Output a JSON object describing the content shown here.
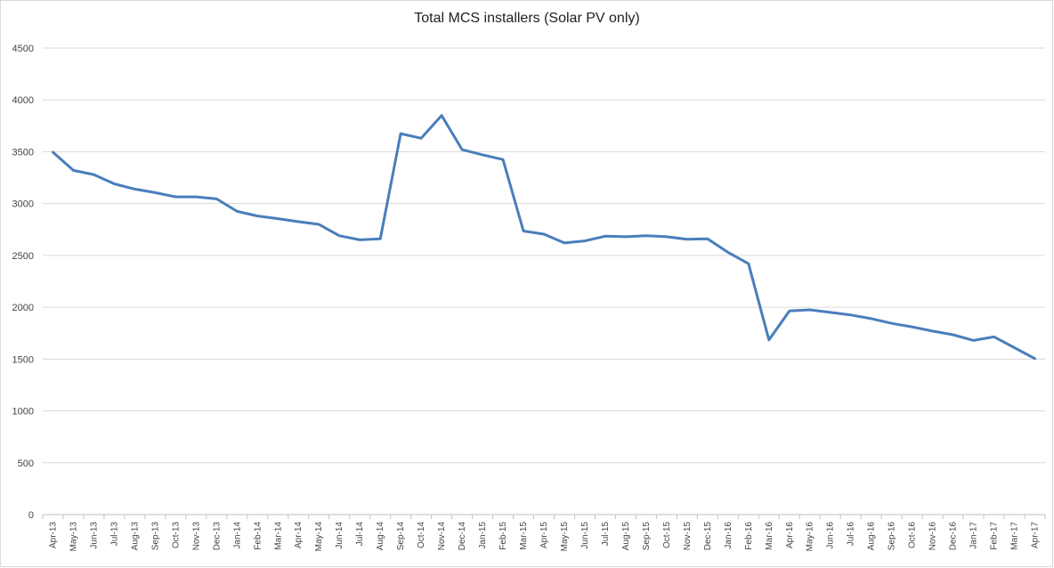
{
  "chart_data": {
    "type": "line",
    "title": "Total MCS installers (Solar PV only)",
    "xlabel": "",
    "ylabel": "",
    "ylim": [
      0,
      4500
    ],
    "yticks": [
      0,
      500,
      1000,
      1500,
      2000,
      2500,
      3000,
      3500,
      4000,
      4500
    ],
    "grid": true,
    "legend": "none",
    "line_color": "#4a7ebb",
    "categories": [
      "Apr-13",
      "May-13",
      "Jun-13",
      "Jul-13",
      "Aug-13",
      "Sep-13",
      "Oct-13",
      "Nov-13",
      "Dec-13",
      "Jan-14",
      "Feb-14",
      "Mar-14",
      "Apr-14",
      "May-14",
      "Jun-14",
      "Jul-14",
      "Aug-14",
      "Sep-14",
      "Oct-14",
      "Nov-14",
      "Dec-14",
      "Jan-15",
      "Feb-15",
      "Mar-15",
      "Apr-15",
      "May-15",
      "Jun-15",
      "Jul-15",
      "Aug-15",
      "Sep-15",
      "Oct-15",
      "Nov-15",
      "Dec-15",
      "Jan-16",
      "Feb-16",
      "Mar-16",
      "Apr-16",
      "May-16",
      "Jun-16",
      "Jul-16",
      "Aug-16",
      "Sep-16",
      "Oct-16",
      "Nov-16",
      "Dec-16",
      "Jan-17",
      "Feb-17",
      "Mar-17",
      "Apr-17"
    ],
    "series": [
      {
        "values": [
          3495,
          3320,
          3280,
          3190,
          3140,
          3105,
          3065,
          3065,
          3045,
          2925,
          2880,
          2855,
          2825,
          2800,
          2690,
          2650,
          2660,
          3675,
          3630,
          3850,
          3520,
          3470,
          3425,
          2735,
          2705,
          2620,
          2640,
          2685,
          2680,
          2690,
          2680,
          2655,
          2660,
          2530,
          2420,
          1685,
          1965,
          1975,
          1950,
          1925,
          1890,
          1845,
          1810,
          1770,
          1735,
          1680,
          1715,
          1610,
          1505
        ]
      }
    ]
  }
}
